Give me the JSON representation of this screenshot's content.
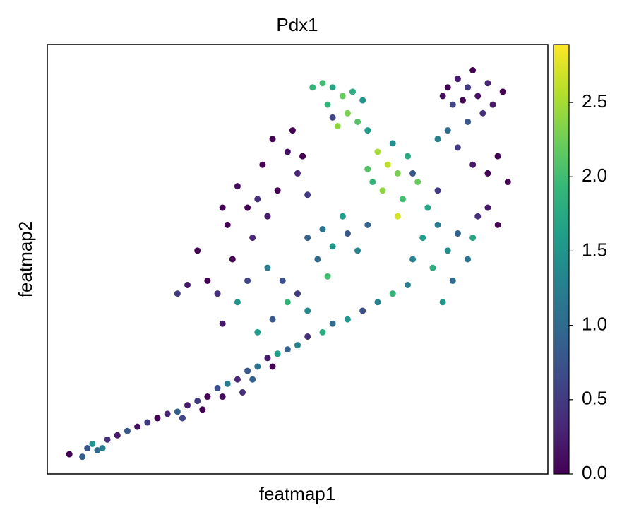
{
  "chart_data": {
    "type": "scatter",
    "title": "Pdx1",
    "x_label": "featmap1",
    "y_label": "featmap2",
    "xlim": [
      0,
      100
    ],
    "ylim": [
      0,
      100
    ],
    "x": [
      4.4,
      8,
      9,
      10,
      12,
      14,
      16,
      18,
      20,
      22,
      24,
      26,
      28,
      30,
      32,
      34,
      36,
      38,
      40,
      42,
      44,
      46,
      48,
      50,
      52,
      55,
      57,
      60,
      63,
      66,
      69,
      72,
      31,
      27,
      35,
      41,
      45,
      39,
      11,
      7,
      38,
      40,
      42,
      35,
      45,
      48,
      50,
      32,
      37,
      41,
      44,
      47,
      34,
      52,
      45,
      48,
      43,
      50,
      46,
      52,
      40,
      38,
      44,
      49,
      51,
      36,
      42,
      52,
      55,
      57,
      60,
      62,
      54,
      59,
      64,
      56,
      55,
      57,
      59,
      61,
      63,
      56,
      60,
      62,
      58,
      64,
      57,
      53,
      66,
      68,
      70,
      64,
      72,
      74,
      67,
      71,
      76,
      69,
      73,
      65,
      78,
      70,
      75,
      78,
      80,
      82,
      84,
      77,
      73,
      86,
      88,
      81,
      79,
      85,
      90,
      80,
      82,
      84,
      86,
      88,
      83,
      81,
      89,
      91,
      85,
      87,
      79,
      80,
      82,
      85,
      88,
      92,
      84,
      78,
      90,
      28,
      30,
      35,
      26
    ],
    "y": [
      4.6,
      6,
      7,
      5.5,
      8,
      9,
      10,
      11,
      12,
      13,
      14,
      14.5,
      16,
      17,
      18,
      20,
      21,
      22,
      24,
      25,
      27,
      28,
      29,
      30,
      32,
      33,
      35,
      36,
      38,
      40,
      42,
      44,
      15,
      13,
      18,
      22,
      25,
      19,
      6,
      4,
      40,
      45,
      33,
      35,
      36,
      40,
      42,
      45,
      50,
      55,
      48,
      45,
      42,
      38,
      78,
      75,
      72,
      70,
      66,
      65,
      62,
      67,
      60,
      80,
      74,
      58,
      64,
      55,
      57,
      53,
      56,
      52,
      50,
      60,
      58,
      46,
      91,
      90,
      88,
      89,
      87,
      86,
      84,
      82,
      81,
      80,
      83,
      90,
      75,
      72,
      70,
      71,
      74,
      68,
      66,
      64,
      62,
      77,
      70,
      68,
      66,
      60,
      55,
      58,
      52,
      56,
      50,
      48,
      50,
      60,
      62,
      45,
      40,
      55,
      58,
      90,
      92,
      90,
      88,
      91,
      87,
      86,
      86,
      89,
      94,
      84,
      88,
      80,
      76,
      72,
      70,
      68,
      82,
      78,
      74,
      44,
      52,
      62,
      42
    ],
    "values": [
      0,
      0.8,
      1.5,
      1,
      0.4,
      0.2,
      0.8,
      0.1,
      0.5,
      0,
      0.3,
      0.9,
      0.2,
      0.5,
      0,
      0.7,
      1.2,
      0.3,
      0.8,
      1.1,
      0.2,
      1.6,
      0.9,
      1.3,
      0.4,
      1.8,
      1,
      1.5,
      0.7,
      1.3,
      1.9,
      1.2,
      0,
      0.6,
      0.1,
      0.9,
      0,
      0.4,
      1.2,
      0.9,
      1.5,
      0.6,
      1.6,
      0.2,
      0.8,
      1.9,
      0.5,
      0,
      0,
      0.3,
      1.2,
      0.7,
      0.4,
      1.4,
      0,
      0.1,
      0,
      0.3,
      0,
      0.5,
      0,
      0.1,
      0.2,
      0,
      0,
      0,
      0.4,
      0.9,
      1.1,
      1.5,
      0.8,
      1.3,
      1,
      1.6,
      0.9,
      2,
      2,
      1.7,
      2.2,
      1.8,
      1.5,
      1.9,
      2.3,
      2.1,
      2.4,
      1.6,
      0.6,
      1.9,
      2.5,
      2.6,
      2.3,
      2.1,
      1.8,
      2.2,
      2.4,
      2,
      1.7,
      1.4,
      0.8,
      1.9,
      0.5,
      2.7,
      1.6,
      1.2,
      1.4,
      0.9,
      1.1,
      1.8,
      1.3,
      0.4,
      0.2,
      1,
      1.5,
      1.7,
      0,
      0,
      0.2,
      0.5,
      0.1,
      0.3,
      0,
      0.6,
      0.2,
      0,
      0,
      0.4,
      0.1,
      1,
      0.5,
      0.2,
      0,
      0,
      0.8,
      1.3,
      0,
      0.2,
      0,
      0,
      0.5
    ],
    "colormap": [
      "#440154",
      "#482878",
      "#3e4989",
      "#31688e",
      "#26828e",
      "#1f9e89",
      "#35b779",
      "#6ece58",
      "#b5de2b",
      "#fde725"
    ],
    "clim": [
      0,
      2.89
    ],
    "cticks": [
      {
        "value": 0,
        "label": "0.0"
      },
      {
        "value": 0.5,
        "label": "0.5"
      },
      {
        "value": 1,
        "label": "1.0"
      },
      {
        "value": 1.5,
        "label": "1.5"
      },
      {
        "value": 2,
        "label": "2.0"
      },
      {
        "value": 2.5,
        "label": "2.5"
      }
    ]
  }
}
